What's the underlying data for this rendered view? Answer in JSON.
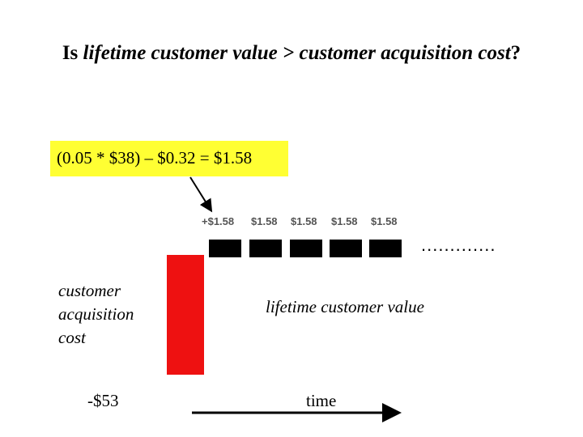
{
  "title": {
    "prefix": "Is ",
    "italic_part": "lifetime customer value > customer acquisition cost",
    "suffix": "?"
  },
  "formula": "(0.05 * $38) – $0.32 = $1.58",
  "values": [
    "+$1.58",
    "$1.58",
    "$1.58",
    "$1.58",
    "$1.58"
  ],
  "dots": ".............",
  "cac_label": {
    "line1": "customer",
    "line2": "acquisition",
    "line3": "cost"
  },
  "ltv_label": "lifetime customer value",
  "neg_value": "-$53",
  "time_label": "time",
  "colors": {
    "highlight": "#ffff33",
    "bar": "#ee1111",
    "blocks": "#000000"
  }
}
